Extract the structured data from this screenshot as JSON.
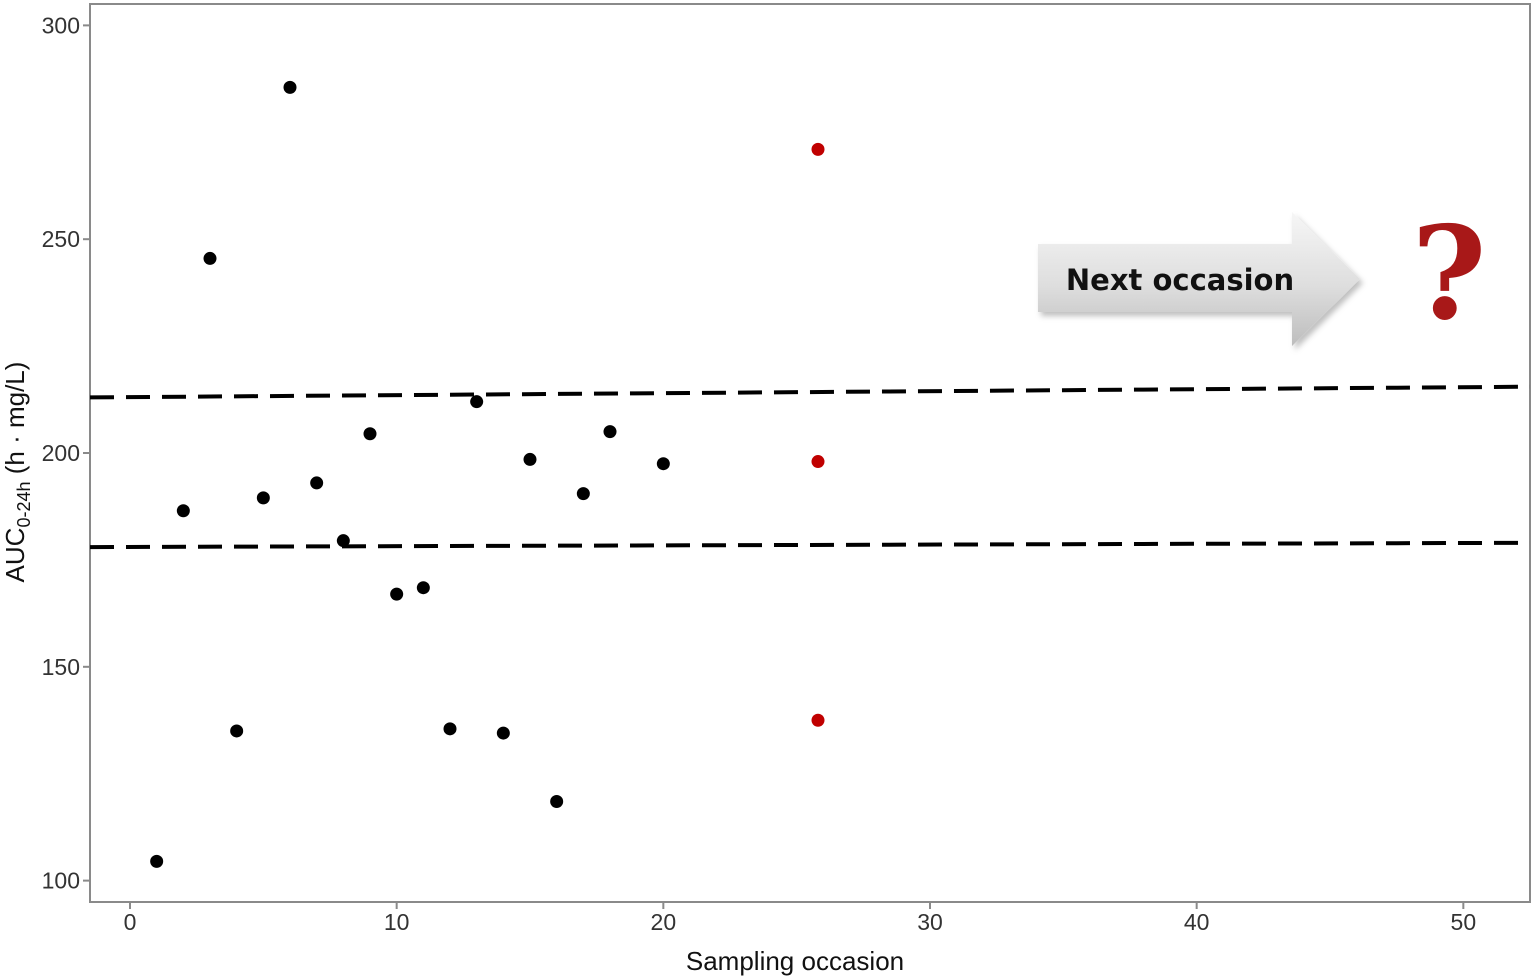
{
  "chart_data": {
    "type": "scatter",
    "title": "",
    "xlabel": "Sampling occasion",
    "ylabel": {
      "main": "AUC",
      "subscript": "0-24h",
      "units": " (h · mg/L)"
    },
    "xlim": [
      -1.5,
      52.5
    ],
    "ylim": [
      95,
      305
    ],
    "x_ticks": [
      0,
      10,
      20,
      30,
      40,
      50
    ],
    "y_ticks": [
      100,
      150,
      200,
      250,
      300
    ],
    "grid": false,
    "legend": "none",
    "series": [
      {
        "color": "#000000",
        "points": [
          {
            "x": 1,
            "y": 104.5
          },
          {
            "x": 2,
            "y": 186.5
          },
          {
            "x": 3,
            "y": 245.5
          },
          {
            "x": 4,
            "y": 135
          },
          {
            "x": 5,
            "y": 189.5
          },
          {
            "x": 6,
            "y": 285.5
          },
          {
            "x": 7,
            "y": 193
          },
          {
            "x": 8,
            "y": 179.5
          },
          {
            "x": 9,
            "y": 204.5
          },
          {
            "x": 10,
            "y": 167
          },
          {
            "x": 11,
            "y": 168.5
          },
          {
            "x": 12,
            "y": 135.5
          },
          {
            "x": 13,
            "y": 212
          },
          {
            "x": 14,
            "y": 134.5
          },
          {
            "x": 15,
            "y": 198.5
          },
          {
            "x": 16,
            "y": 118.5
          },
          {
            "x": 17,
            "y": 190.5
          },
          {
            "x": 18,
            "y": 205
          },
          {
            "x": 20,
            "y": 197.5
          }
        ]
      },
      {
        "color": "#c00000",
        "points": [
          {
            "x": 25.8,
            "y": 271
          },
          {
            "x": 25.8,
            "y": 198
          },
          {
            "x": 25.8,
            "y": 137.5
          }
        ]
      }
    ],
    "reference_lines": [
      {
        "style": "dashed",
        "color": "#000000",
        "x_start": -1.5,
        "y_start": 213,
        "x_end": 52.5,
        "y_end": 215.5
      },
      {
        "style": "dashed",
        "color": "#000000",
        "x_start": -1.5,
        "y_start": 178,
        "x_end": 52.5,
        "y_end": 179
      }
    ],
    "annotations": [
      {
        "type": "arrow",
        "text": "Next occasion"
      },
      {
        "type": "symbol",
        "text": "?",
        "color": "#a81818"
      }
    ]
  }
}
